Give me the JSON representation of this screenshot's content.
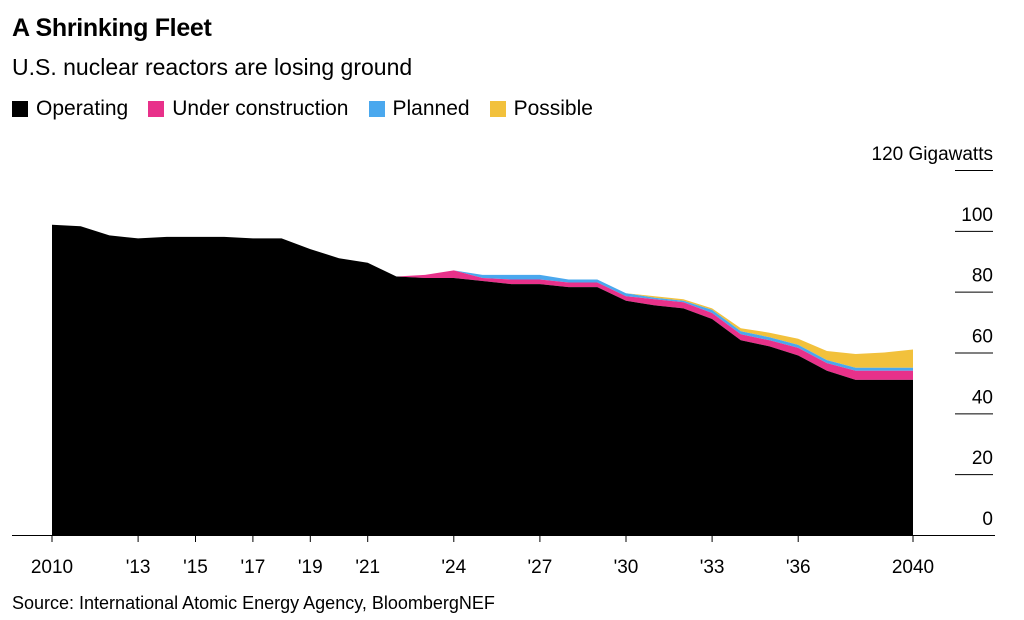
{
  "title": "A Shrinking Fleet",
  "subtitle": "U.S. nuclear reactors are losing ground",
  "source": "Source: International Atomic Energy Agency, BloombergNEF",
  "legend": [
    {
      "label": "Operating",
      "color": "#000000"
    },
    {
      "label": "Under construction",
      "color": "#e8318a"
    },
    {
      "label": "Planned",
      "color": "#4aa8ee"
    },
    {
      "label": "Possible",
      "color": "#f2c13c"
    }
  ],
  "chart_data": {
    "type": "area",
    "stacked": true,
    "x": [
      2010,
      2011,
      2012,
      2013,
      2014,
      2015,
      2016,
      2017,
      2018,
      2019,
      2020,
      2021,
      2022,
      2023,
      2024,
      2025,
      2026,
      2027,
      2028,
      2029,
      2030,
      2031,
      2032,
      2033,
      2034,
      2035,
      2036,
      2037,
      2038,
      2039,
      2040
    ],
    "series": [
      {
        "name": "Operating",
        "color": "#000000",
        "values": [
          102,
          101.5,
          98.5,
          97.5,
          98,
          98,
          98,
          97.5,
          97.5,
          94,
          91,
          89.5,
          85,
          84.5,
          84.5,
          83.5,
          82.5,
          82.5,
          81.5,
          81.5,
          77,
          75.5,
          74.5,
          71,
          64,
          62,
          59,
          54,
          51,
          51,
          51
        ]
      },
      {
        "name": "Under construction",
        "color": "#e8318a",
        "values": [
          0,
          0,
          0,
          0,
          0,
          0,
          0,
          0,
          0,
          0,
          0,
          0,
          0,
          1,
          2.5,
          1,
          1.5,
          1.5,
          1.5,
          1.5,
          1.5,
          2,
          2,
          2,
          2,
          2,
          2.5,
          2.5,
          3,
          3,
          3
        ]
      },
      {
        "name": "Planned",
        "color": "#4aa8ee",
        "values": [
          0,
          0,
          0,
          0,
          0,
          0,
          0,
          0,
          0,
          0,
          0,
          0,
          0,
          0,
          0,
          1,
          1.5,
          1.5,
          1,
          1,
          1,
          0.5,
          0.5,
          1,
          1,
          1,
          1,
          1,
          1,
          1,
          1
        ]
      },
      {
        "name": "Possible",
        "color": "#f2c13c",
        "values": [
          0,
          0,
          0,
          0,
          0,
          0,
          0,
          0,
          0,
          0,
          0,
          0,
          0,
          0,
          0,
          0,
          0,
          0,
          0,
          0,
          0,
          0.5,
          0.5,
          0.5,
          1,
          1.5,
          2,
          3,
          4.5,
          5,
          6
        ]
      }
    ],
    "x_ticks": [
      {
        "value": 2010,
        "label": "2010"
      },
      {
        "value": 2013,
        "label": "'13"
      },
      {
        "value": 2015,
        "label": "'15"
      },
      {
        "value": 2017,
        "label": "'17"
      },
      {
        "value": 2019,
        "label": "'19"
      },
      {
        "value": 2021,
        "label": "'21"
      },
      {
        "value": 2024,
        "label": "'24"
      },
      {
        "value": 2027,
        "label": "'27"
      },
      {
        "value": 2030,
        "label": "'30"
      },
      {
        "value": 2033,
        "label": "'33"
      },
      {
        "value": 2036,
        "label": "'36"
      },
      {
        "value": 2040,
        "label": "2040"
      }
    ],
    "y_ticks": [
      {
        "value": 0,
        "label": "0"
      },
      {
        "value": 20,
        "label": "20"
      },
      {
        "value": 40,
        "label": "40"
      },
      {
        "value": 60,
        "label": "60"
      },
      {
        "value": 80,
        "label": "80"
      },
      {
        "value": 100,
        "label": "100"
      },
      {
        "value": 120,
        "label": "120 Gigawatts"
      }
    ],
    "xlim": [
      2010,
      2040
    ],
    "ylim": [
      0,
      120
    ],
    "y_axis_side": "right",
    "legend_position": "top-left",
    "grid": false
  }
}
